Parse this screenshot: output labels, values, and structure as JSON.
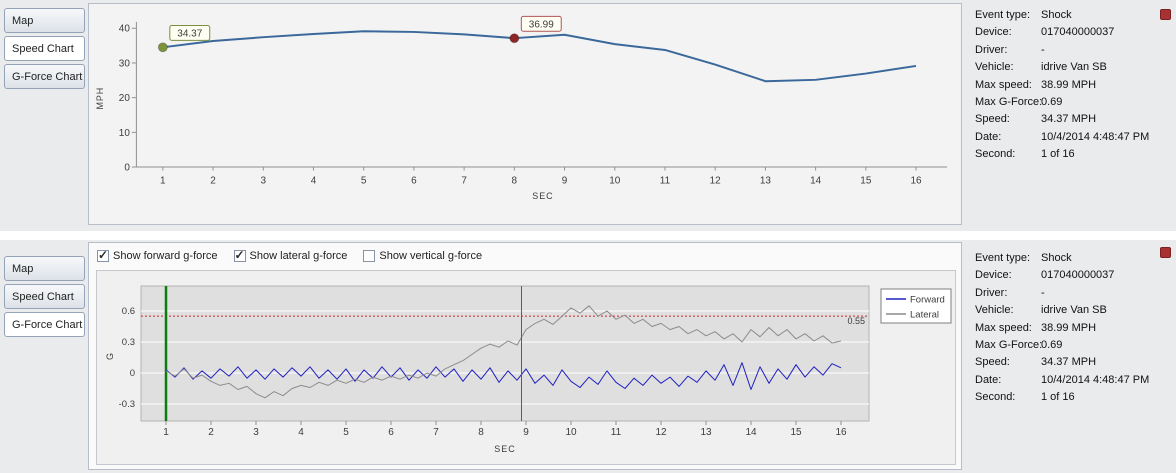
{
  "top_panel": {
    "tabs": [
      {
        "label": "Map",
        "active": false
      },
      {
        "label": "Speed Chart",
        "active": true
      },
      {
        "label": "G-Force Chart",
        "active": false
      }
    ],
    "details": [
      {
        "label": "Event type:",
        "value": "Shock"
      },
      {
        "label": "Device:",
        "value": "017040000037"
      },
      {
        "label": "Driver:",
        "value": "-"
      },
      {
        "label": "Vehicle:",
        "value": "idrive Van SB"
      },
      {
        "label": "Max speed:",
        "value": "38.99 MPH"
      },
      {
        "label": "Max G-Force:",
        "value": "0.69"
      },
      {
        "label": "Speed:",
        "value": "34.37 MPH"
      },
      {
        "label": "Date:",
        "value": "10/4/2014 4:48:47 PM"
      },
      {
        "label": "Second:",
        "value": "1 of 16"
      }
    ]
  },
  "bottom_panel": {
    "tabs": [
      {
        "label": "Map",
        "active": false
      },
      {
        "label": "Speed Chart",
        "active": false
      },
      {
        "label": "G-Force Chart",
        "active": true
      }
    ],
    "checkboxes": [
      {
        "label": "Show forward g-force",
        "checked": true
      },
      {
        "label": "Show lateral g-force",
        "checked": true
      },
      {
        "label": "Show vertical g-force",
        "checked": false
      }
    ],
    "details": [
      {
        "label": "Event type:",
        "value": "Shock"
      },
      {
        "label": "Device:",
        "value": "017040000037"
      },
      {
        "label": "Driver:",
        "value": "-"
      },
      {
        "label": "Vehicle:",
        "value": "idrive Van SB"
      },
      {
        "label": "Max speed:",
        "value": "38.99 MPH"
      },
      {
        "label": "Max G-Force:",
        "value": "0.69"
      },
      {
        "label": "Speed:",
        "value": "34.37 MPH"
      },
      {
        "label": "Date:",
        "value": "10/4/2014 4:48:47 PM"
      },
      {
        "label": "Second:",
        "value": "1 of 16"
      }
    ]
  },
  "chart_data": [
    {
      "id": "speed",
      "type": "line",
      "title": "",
      "xlabel": "SEC",
      "ylabel": "MPH",
      "x": [
        1,
        2,
        3,
        4,
        5,
        6,
        7,
        8,
        9,
        10,
        11,
        12,
        13,
        14,
        15,
        16
      ],
      "values": [
        34.37,
        36.2,
        37.3,
        38.2,
        38.99,
        38.8,
        38.1,
        36.99,
        38.0,
        35.3,
        33.6,
        29.4,
        24.6,
        25.0,
        26.8,
        29.0
      ],
      "ylim": [
        0,
        40
      ],
      "yticks": [
        0,
        10,
        20,
        30,
        40
      ],
      "line_color": "#3a689a",
      "markers": [
        {
          "x": 1,
          "y": 34.37,
          "label": "34.37",
          "color": "#7e933b",
          "border": "#7b8f3c",
          "text_color": "#3c3c3c"
        },
        {
          "x": 8,
          "y": 36.99,
          "label": "36.99",
          "color": "#8d2626",
          "border": "#b05555",
          "text_color": "#9c3333"
        }
      ]
    },
    {
      "id": "gforce",
      "type": "line",
      "title": "",
      "xlabel": "SEC",
      "ylabel": "G",
      "x_start": 1.0,
      "x_step": 0.2,
      "ylim": [
        -0.46,
        0.84
      ],
      "yticks": [
        -0.3,
        0,
        0.3,
        0.6
      ],
      "xticks": [
        1,
        2,
        3,
        4,
        5,
        6,
        7,
        8,
        9,
        10,
        11,
        12,
        13,
        14,
        15,
        16
      ],
      "legend_position": "right",
      "series": [
        {
          "name": "Forward",
          "color": "#2020c0",
          "values": [
            0.03,
            -0.04,
            0.05,
            -0.06,
            0.02,
            -0.05,
            0.04,
            -0.03,
            0.06,
            -0.05,
            0.03,
            -0.06,
            0.04,
            -0.04,
            0.05,
            -0.03,
            0.06,
            -0.05,
            0.03,
            -0.06,
            0.04,
            -0.08,
            0.03,
            -0.05,
            0.06,
            -0.04,
            0.05,
            -0.07,
            0.03,
            -0.05,
            0.06,
            -0.04,
            0.04,
            -0.08,
            0.03,
            -0.06,
            0.05,
            -0.09,
            0.02,
            -0.07,
            0.04,
            -0.1,
            -0.02,
            -0.12,
            0.03,
            -0.08,
            -0.14,
            -0.04,
            -0.11,
            0.02,
            -0.09,
            -0.15,
            -0.05,
            -0.12,
            -0.02,
            -0.1,
            -0.04,
            -0.13,
            -0.03,
            -0.09,
            0.02,
            -0.07,
            0.08,
            -0.12,
            0.1,
            -0.16,
            0.06,
            -0.1,
            0.04,
            -0.06,
            0.08,
            -0.04,
            0.06,
            -0.02,
            0.09,
            0.05
          ]
        },
        {
          "name": "Lateral",
          "color": "#8c8c8c",
          "values": [
            0.02,
            -0.03,
            0.04,
            -0.05,
            -0.02,
            -0.08,
            -0.12,
            -0.1,
            -0.16,
            -0.13,
            -0.2,
            -0.24,
            -0.18,
            -0.22,
            -0.15,
            -0.12,
            -0.14,
            -0.09,
            -0.12,
            -0.07,
            -0.1,
            -0.06,
            -0.09,
            -0.04,
            -0.07,
            -0.03,
            -0.06,
            -0.02,
            -0.05,
            0.0,
            -0.03,
            0.04,
            0.08,
            0.12,
            0.18,
            0.24,
            0.28,
            0.25,
            0.31,
            0.27,
            0.42,
            0.48,
            0.52,
            0.47,
            0.55,
            0.63,
            0.58,
            0.65,
            0.55,
            0.6,
            0.52,
            0.56,
            0.48,
            0.52,
            0.45,
            0.48,
            0.42,
            0.45,
            0.38,
            0.42,
            0.36,
            0.4,
            0.33,
            0.38,
            0.3,
            0.42,
            0.35,
            0.44,
            0.36,
            0.42,
            0.33,
            0.38,
            0.31,
            0.36,
            0.29,
            0.31
          ]
        }
      ],
      "threshold": {
        "y": 0.55,
        "label": "0.55",
        "color": "#c62828"
      },
      "green_marker_x": 1,
      "red_marker_x": 8.9
    }
  ]
}
